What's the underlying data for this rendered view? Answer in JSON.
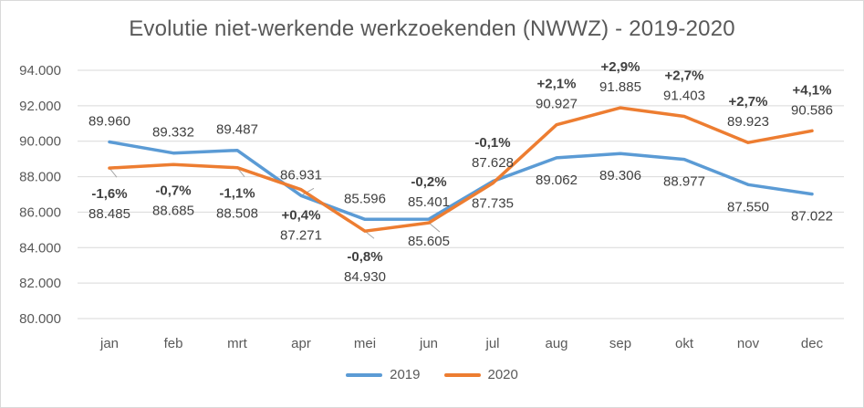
{
  "chart_data": {
    "type": "line",
    "title": "Evolutie niet-werkende werkzoekenden  (NWWZ) - 2019-2020",
    "xlabel": "",
    "ylabel": "",
    "categories": [
      "jan",
      "feb",
      "mrt",
      "apr",
      "mei",
      "jun",
      "jul",
      "aug",
      "sep",
      "okt",
      "nov",
      "dec"
    ],
    "ylim": [
      80000,
      94000
    ],
    "yticks": [
      80000,
      82000,
      84000,
      86000,
      88000,
      90000,
      92000,
      94000
    ],
    "ytick_labels": [
      "80.000",
      "82.000",
      "84.000",
      "86.000",
      "88.000",
      "90.000",
      "92.000",
      "94.000"
    ],
    "grid": true,
    "legend_position": "bottom",
    "series": [
      {
        "name": "2019",
        "color": "#5b9bd5",
        "values": [
          89960,
          89332,
          89487,
          86931,
          85596,
          85605,
          87735,
          89062,
          89306,
          88977,
          87550,
          87022
        ],
        "labels": [
          "89.960",
          "89.332",
          "89.487",
          "86.931",
          "85.596",
          "85.605",
          "87.735",
          "89.062",
          "89.306",
          "88.977",
          "87.550",
          "87.022"
        ]
      },
      {
        "name": "2020",
        "color": "#ed7d31",
        "values": [
          88485,
          88685,
          88508,
          87271,
          84930,
          85401,
          87628,
          90927,
          91885,
          91403,
          89923,
          90586
        ],
        "labels": [
          "88.485",
          "88.685",
          "88.508",
          "87.271",
          "84.930",
          "85.401",
          "87.628",
          "90.927",
          "91.885",
          "91.403",
          "89.923",
          "90.586"
        ]
      }
    ],
    "changes": [
      "-1,6%",
      "-0,7%",
      "-1,1%",
      "+0,4%",
      "-0,8%",
      "-0,2%",
      "-0,1%",
      "+2,1%",
      "+2,9%",
      "+2,7%",
      "+2,7%",
      "+4,1%"
    ]
  }
}
